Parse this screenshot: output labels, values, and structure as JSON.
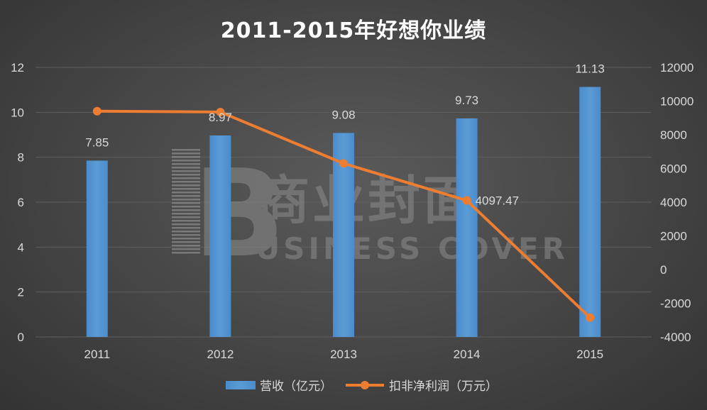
{
  "chart_data": {
    "type": "bar",
    "title": "2011-2015年好想你业绩",
    "categories": [
      "2011",
      "2012",
      "2013",
      "2014",
      "2015"
    ],
    "series": [
      {
        "name": "营收（亿元）",
        "type": "bar",
        "axis": "left",
        "values": [
          7.85,
          8.97,
          9.08,
          9.73,
          11.13
        ],
        "labels": [
          "7.85",
          "8.97",
          "9.08",
          "9.73",
          "11.13"
        ],
        "color": "#5b9bd5"
      },
      {
        "name": "扣非净利润（万元）",
        "type": "line",
        "axis": "right",
        "values": [
          9400,
          9350,
          6300,
          4097.47,
          -2850
        ],
        "labels": [
          "",
          "",
          "",
          "4097.47",
          ""
        ],
        "color": "#ed7d31"
      }
    ],
    "y_left": {
      "ylim": [
        0,
        12
      ],
      "ticks": [
        "0",
        "2",
        "4",
        "6",
        "8",
        "10",
        "12"
      ]
    },
    "y_right": {
      "ylim": [
        -4000,
        12000
      ],
      "ticks": [
        "-4000",
        "-2000",
        "0",
        "2000",
        "4000",
        "6000",
        "8000",
        "10000",
        "12000"
      ]
    },
    "grid": true,
    "legend_position": "bottom"
  },
  "watermark": {
    "text_cn": "商业封面",
    "text_en": "USINESS COVER",
    "logo_letter": "B"
  }
}
